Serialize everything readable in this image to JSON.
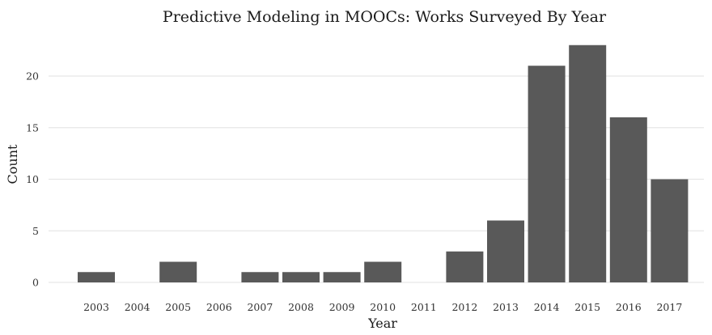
{
  "chart_data": {
    "type": "bar",
    "title": "Predictive Modeling in MOOCs: Works Surveyed By Year",
    "xlabel": "Year",
    "ylabel": "Count",
    "categories": [
      "2003",
      "2004",
      "2005",
      "2006",
      "2007",
      "2008",
      "2009",
      "2010",
      "2011",
      "2012",
      "2013",
      "2014",
      "2015",
      "2016",
      "2017"
    ],
    "values": [
      1,
      0,
      2,
      0,
      1,
      1,
      1,
      2,
      0,
      3,
      6,
      21,
      23,
      16,
      10
    ],
    "ylim": [
      0,
      23
    ],
    "yticks": [
      0,
      5,
      10,
      15,
      20
    ],
    "grid": true,
    "legend": "none",
    "bar_color": "#595959",
    "grid_color": "#e6e6e6"
  }
}
